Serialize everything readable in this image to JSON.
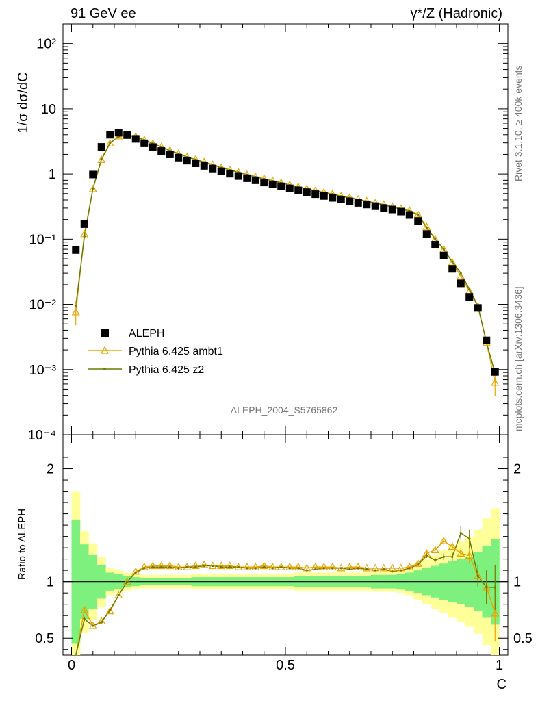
{
  "header": {
    "left": "91 GeV ee",
    "right": "γ*/Z (Hadronic)"
  },
  "side_labels": {
    "rivet": "Rivet 3.1.10, ≥ 400k events",
    "mcplots": "mcplots.cern.ch [arXiv:1306.3436]"
  },
  "analysis_label": "ALEPH_2004_S5765862",
  "colors": {
    "data": "#000000",
    "ambt1": "#e8a400",
    "z2": "#6b7a00",
    "band_inner": "#7ef07e",
    "band_outer": "#ffff99"
  },
  "chart_data": [
    {
      "type": "scatter",
      "ylabel": "1/σ  dσ/dC",
      "yscale": "log",
      "ylim": [
        0.0001,
        200
      ],
      "xlim": [
        -0.02,
        1.02
      ],
      "y_ticks": [
        "10⁻⁴",
        "10⁻³",
        "10⁻²",
        "10⁻¹",
        "1",
        "10",
        "10²"
      ],
      "legend": {
        "position": "bottom-left",
        "entries": [
          "ALEPH",
          "Pythia 6.425 ambt1",
          "Pythia 6.425 z2"
        ]
      },
      "x": [
        0.01,
        0.03,
        0.05,
        0.07,
        0.09,
        0.11,
        0.13,
        0.15,
        0.17,
        0.19,
        0.21,
        0.23,
        0.25,
        0.27,
        0.29,
        0.31,
        0.33,
        0.35,
        0.37,
        0.39,
        0.41,
        0.43,
        0.45,
        0.47,
        0.49,
        0.51,
        0.53,
        0.55,
        0.57,
        0.59,
        0.61,
        0.63,
        0.65,
        0.67,
        0.69,
        0.71,
        0.73,
        0.75,
        0.77,
        0.79,
        0.81,
        0.83,
        0.85,
        0.87,
        0.89,
        0.91,
        0.93,
        0.95,
        0.97,
        0.99
      ],
      "series": [
        {
          "name": "ALEPH",
          "values": [
            0.068,
            0.17,
            0.98,
            2.6,
            4.0,
            4.3,
            3.95,
            3.45,
            2.95,
            2.58,
            2.25,
            2.0,
            1.78,
            1.6,
            1.46,
            1.33,
            1.21,
            1.1,
            1.01,
            0.93,
            0.86,
            0.8,
            0.74,
            0.69,
            0.645,
            0.6,
            0.56,
            0.525,
            0.49,
            0.46,
            0.43,
            0.405,
            0.38,
            0.36,
            0.34,
            0.32,
            0.3,
            0.285,
            0.265,
            0.235,
            0.19,
            0.12,
            0.082,
            0.056,
            0.035,
            0.021,
            0.013,
            0.0088,
            0.0028,
            0.00092
          ]
        },
        {
          "name": "Pythia 6.425 ambt1",
          "values": [
            0.0076,
            0.12,
            0.59,
            1.65,
            2.95,
            3.8,
            3.95,
            3.75,
            3.35,
            2.95,
            2.6,
            2.3,
            2.05,
            1.83,
            1.67,
            1.53,
            1.39,
            1.26,
            1.16,
            1.07,
            0.98,
            0.91,
            0.85,
            0.79,
            0.735,
            0.68,
            0.635,
            0.595,
            0.555,
            0.525,
            0.495,
            0.46,
            0.435,
            0.41,
            0.385,
            0.36,
            0.34,
            0.315,
            0.295,
            0.275,
            0.24,
            0.155,
            0.1,
            0.07,
            0.044,
            0.027,
            0.016,
            0.0093,
            0.0026,
            0.00063
          ]
        },
        {
          "name": "Pythia 6.425 z2",
          "values": [
            0.0095,
            0.11,
            0.6,
            1.7,
            3.0,
            3.75,
            3.9,
            3.72,
            3.3,
            2.93,
            2.58,
            2.28,
            2.04,
            1.82,
            1.66,
            1.52,
            1.38,
            1.25,
            1.15,
            1.06,
            0.975,
            0.9,
            0.84,
            0.78,
            0.73,
            0.675,
            0.63,
            0.59,
            0.55,
            0.52,
            0.49,
            0.455,
            0.43,
            0.405,
            0.38,
            0.355,
            0.335,
            0.31,
            0.29,
            0.27,
            0.235,
            0.15,
            0.1,
            0.07,
            0.045,
            0.03,
            0.017,
            0.0095,
            0.0026,
            0.00088
          ]
        }
      ]
    },
    {
      "type": "line",
      "ylabel": "Ratio to ALEPH",
      "xlabel": "C",
      "ylim": [
        0.35,
        2.3
      ],
      "xlim": [
        -0.02,
        1.02
      ],
      "x_ticks": [
        "0",
        "0.5",
        "1"
      ],
      "y_ticks": [
        "0.5",
        "1",
        "2"
      ],
      "x": [
        0.01,
        0.03,
        0.05,
        0.07,
        0.09,
        0.11,
        0.13,
        0.15,
        0.17,
        0.19,
        0.21,
        0.23,
        0.25,
        0.27,
        0.29,
        0.31,
        0.33,
        0.35,
        0.37,
        0.39,
        0.41,
        0.43,
        0.45,
        0.47,
        0.49,
        0.51,
        0.53,
        0.55,
        0.57,
        0.59,
        0.61,
        0.63,
        0.65,
        0.67,
        0.69,
        0.71,
        0.73,
        0.75,
        0.77,
        0.79,
        0.81,
        0.83,
        0.85,
        0.87,
        0.89,
        0.91,
        0.93,
        0.95,
        0.97,
        0.99
      ],
      "band_inner": [
        0.55,
        0.33,
        0.24,
        0.15,
        0.08,
        0.07,
        0.05,
        0.04,
        0.03,
        0.03,
        0.03,
        0.03,
        0.03,
        0.03,
        0.04,
        0.04,
        0.04,
        0.04,
        0.04,
        0.04,
        0.04,
        0.04,
        0.04,
        0.04,
        0.04,
        0.04,
        0.05,
        0.05,
        0.05,
        0.05,
        0.05,
        0.05,
        0.05,
        0.05,
        0.05,
        0.06,
        0.06,
        0.06,
        0.07,
        0.08,
        0.1,
        0.12,
        0.14,
        0.16,
        0.18,
        0.2,
        0.22,
        0.26,
        0.32,
        0.38
      ],
      "band_outer": [
        0.8,
        0.45,
        0.34,
        0.22,
        0.12,
        0.1,
        0.08,
        0.07,
        0.06,
        0.06,
        0.06,
        0.06,
        0.06,
        0.06,
        0.07,
        0.07,
        0.07,
        0.07,
        0.07,
        0.07,
        0.07,
        0.07,
        0.07,
        0.07,
        0.07,
        0.07,
        0.08,
        0.08,
        0.08,
        0.08,
        0.08,
        0.08,
        0.08,
        0.08,
        0.08,
        0.09,
        0.09,
        0.09,
        0.1,
        0.12,
        0.16,
        0.2,
        0.24,
        0.28,
        0.32,
        0.36,
        0.4,
        0.46,
        0.56,
        0.65
      ],
      "series": [
        {
          "name": "Pythia 6.425 ambt1",
          "values": [
            0.11,
            0.75,
            0.61,
            0.65,
            0.74,
            0.88,
            1.0,
            1.09,
            1.13,
            1.14,
            1.14,
            1.14,
            1.13,
            1.13,
            1.14,
            1.15,
            1.14,
            1.14,
            1.14,
            1.13,
            1.13,
            1.13,
            1.14,
            1.13,
            1.13,
            1.13,
            1.13,
            1.12,
            1.13,
            1.13,
            1.13,
            1.12,
            1.13,
            1.13,
            1.12,
            1.12,
            1.12,
            1.12,
            1.12,
            1.13,
            1.16,
            1.25,
            1.28,
            1.36,
            1.31,
            1.25,
            1.23,
            1.05,
            0.95,
            0.72
          ],
          "errors": [
            0.1,
            0.02,
            0.01,
            0.01,
            0.01,
            0.01,
            0.01,
            0.01,
            0.01,
            0.01,
            0.01,
            0.01,
            0.01,
            0.01,
            0.01,
            0.01,
            0.01,
            0.01,
            0.01,
            0.01,
            0.01,
            0.01,
            0.01,
            0.01,
            0.01,
            0.01,
            0.01,
            0.01,
            0.01,
            0.01,
            0.01,
            0.01,
            0.01,
            0.01,
            0.01,
            0.01,
            0.01,
            0.01,
            0.01,
            0.01,
            0.01,
            0.02,
            0.02,
            0.03,
            0.04,
            0.05,
            0.07,
            0.1,
            0.15,
            0.25
          ]
        },
        {
          "name": "Pythia 6.425 z2",
          "values": [
            0.14,
            0.67,
            0.61,
            0.64,
            0.75,
            0.88,
            1.0,
            1.08,
            1.12,
            1.13,
            1.13,
            1.13,
            1.12,
            1.13,
            1.13,
            1.14,
            1.14,
            1.13,
            1.13,
            1.13,
            1.12,
            1.12,
            1.13,
            1.12,
            1.13,
            1.12,
            1.12,
            1.1,
            1.11,
            1.12,
            1.12,
            1.12,
            1.11,
            1.12,
            1.11,
            1.1,
            1.11,
            1.09,
            1.1,
            1.12,
            1.15,
            1.23,
            1.19,
            1.22,
            1.22,
            1.43,
            1.38,
            1.05,
            0.95,
            0.95
          ],
          "errors": [
            0.12,
            0.02,
            0.01,
            0.01,
            0.01,
            0.01,
            0.01,
            0.01,
            0.01,
            0.01,
            0.01,
            0.01,
            0.01,
            0.01,
            0.01,
            0.01,
            0.01,
            0.01,
            0.01,
            0.01,
            0.01,
            0.01,
            0.01,
            0.01,
            0.01,
            0.01,
            0.01,
            0.01,
            0.01,
            0.01,
            0.01,
            0.01,
            0.01,
            0.01,
            0.01,
            0.01,
            0.01,
            0.01,
            0.01,
            0.01,
            0.01,
            0.02,
            0.02,
            0.03,
            0.04,
            0.06,
            0.08,
            0.1,
            0.15,
            0.2
          ]
        }
      ]
    }
  ]
}
